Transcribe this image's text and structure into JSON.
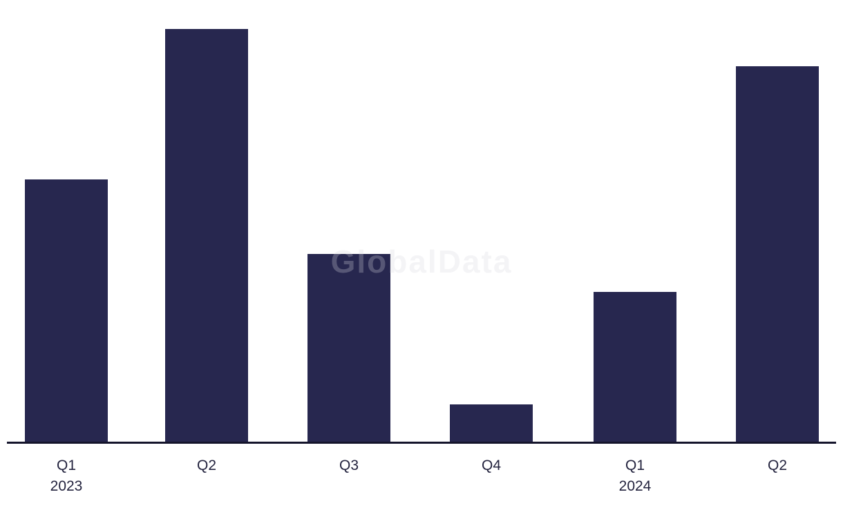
{
  "watermark": {
    "text": "GlobalData",
    "color": "#D8D8E0"
  },
  "colors": {
    "background": "#FFFFFF",
    "bar": "#27274F",
    "axis_line": "#14142B",
    "tick_label": "#23233E"
  },
  "chart_data": {
    "type": "bar",
    "categories": [
      "Q1 2023",
      "Q2 2023",
      "Q3 2023",
      "Q4 2023",
      "Q1 2024",
      "Q2 2024"
    ],
    "tick_labels": [
      {
        "line1": "Q1",
        "line2": "2023"
      },
      {
        "line1": "Q2",
        "line2": ""
      },
      {
        "line1": "Q3",
        "line2": ""
      },
      {
        "line1": "Q4",
        "line2": ""
      },
      {
        "line1": "Q1",
        "line2": "2024"
      },
      {
        "line1": "Q2",
        "line2": ""
      }
    ],
    "values": [
      63.6,
      100,
      45.6,
      9.2,
      36.4,
      91
    ],
    "value_units": "percent of tallest bar (no y-axis or value labels shown in chart)",
    "title": "",
    "xlabel": "",
    "ylabel": "",
    "ylim": [
      0,
      100
    ],
    "grid": false,
    "legend": false,
    "bar_color": "#27274F",
    "watermark_text": "GlobalData"
  }
}
